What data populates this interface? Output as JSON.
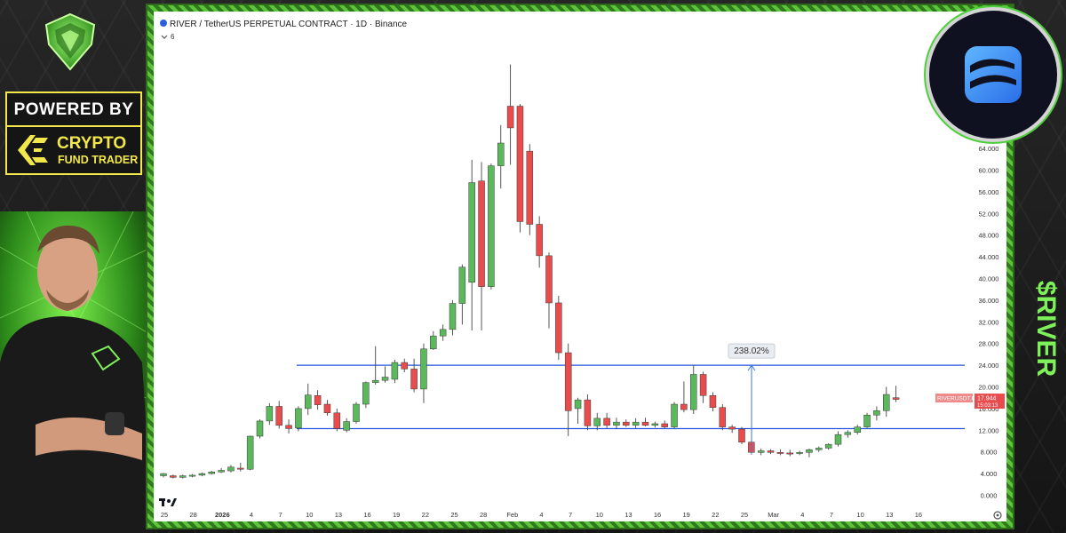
{
  "chart_data": {
    "type": "candlestick",
    "title": "RIVER / TetherUS PERPETUAL CONTRACT · 1D · Binance",
    "indicator_count": "6",
    "x_ticks": [
      "25",
      "28",
      "2026",
      "4",
      "7",
      "10",
      "13",
      "16",
      "19",
      "22",
      "25",
      "28",
      "Feb",
      "4",
      "7",
      "10",
      "13",
      "16",
      "19",
      "22",
      "25",
      "Mar",
      "4",
      "7",
      "10",
      "13",
      "16"
    ],
    "y_ticks": [
      "0.000",
      "4.000",
      "8.000",
      "12.000",
      "16.000",
      "20.000",
      "24.000",
      "28.000",
      "32.000",
      "36.000",
      "40.000",
      "44.000",
      "48.000",
      "52.000",
      "56.000",
      "60.000",
      "64.000"
    ],
    "ylim": [
      0,
      66
    ],
    "candles": [
      {
        "date": "Dec 23",
        "o": 3.6,
        "h": 4.1,
        "l": 3.3,
        "c": 4.0
      },
      {
        "date": "Dec 24",
        "o": 3.6,
        "h": 3.8,
        "l": 3.1,
        "c": 3.3
      },
      {
        "date": "Dec 25",
        "o": 3.3,
        "h": 3.8,
        "l": 3.1,
        "c": 3.6
      },
      {
        "date": "Dec 26",
        "o": 3.6,
        "h": 3.9,
        "l": 3.3,
        "c": 3.7
      },
      {
        "date": "Dec 27",
        "o": 3.7,
        "h": 4.2,
        "l": 3.5,
        "c": 4.0
      },
      {
        "date": "Dec 28",
        "o": 4.0,
        "h": 4.5,
        "l": 3.8,
        "c": 4.3
      },
      {
        "date": "Dec 29",
        "o": 4.3,
        "h": 5.0,
        "l": 4.1,
        "c": 4.6
      },
      {
        "date": "Dec 30",
        "o": 4.5,
        "h": 5.6,
        "l": 4.2,
        "c": 5.2
      },
      {
        "date": "Dec 31",
        "o": 5.0,
        "h": 6.0,
        "l": 4.4,
        "c": 4.8
      },
      {
        "date": "Jan 1",
        "o": 4.8,
        "h": 11.0,
        "l": 4.6,
        "c": 10.9
      },
      {
        "date": "Jan 2",
        "o": 10.9,
        "h": 14.0,
        "l": 10.5,
        "c": 13.7
      },
      {
        "date": "Jan 3",
        "o": 13.7,
        "h": 17.0,
        "l": 13.0,
        "c": 16.4
      },
      {
        "date": "Jan 4",
        "o": 16.4,
        "h": 17.4,
        "l": 12.3,
        "c": 12.9
      },
      {
        "date": "Jan 5",
        "o": 12.9,
        "h": 14.0,
        "l": 11.4,
        "c": 12.3
      },
      {
        "date": "Jan 6",
        "o": 12.4,
        "h": 16.4,
        "l": 11.8,
        "c": 16.0
      },
      {
        "date": "Jan 7",
        "o": 16.0,
        "h": 20.6,
        "l": 14.8,
        "c": 18.5
      },
      {
        "date": "Jan 8",
        "o": 18.4,
        "h": 19.4,
        "l": 15.8,
        "c": 16.7
      },
      {
        "date": "Jan 9",
        "o": 16.8,
        "h": 17.6,
        "l": 14.7,
        "c": 15.2
      },
      {
        "date": "Jan 10",
        "o": 15.2,
        "h": 16.0,
        "l": 11.8,
        "c": 12.3
      },
      {
        "date": "Jan 11",
        "o": 12.0,
        "h": 14.2,
        "l": 11.6,
        "c": 13.6
      },
      {
        "date": "Jan 12",
        "o": 13.6,
        "h": 17.2,
        "l": 13.2,
        "c": 16.8
      },
      {
        "date": "Jan 13",
        "o": 16.8,
        "h": 21.0,
        "l": 16.1,
        "c": 20.8
      },
      {
        "date": "Jan 14",
        "o": 20.8,
        "h": 27.5,
        "l": 20.4,
        "c": 21.2
      },
      {
        "date": "Jan 15",
        "o": 21.2,
        "h": 23.8,
        "l": 20.8,
        "c": 21.8
      },
      {
        "date": "Jan 16",
        "o": 21.4,
        "h": 25.0,
        "l": 20.7,
        "c": 24.5
      },
      {
        "date": "Jan 17",
        "o": 24.5,
        "h": 25.2,
        "l": 22.7,
        "c": 23.3
      },
      {
        "date": "Jan 18",
        "o": 23.3,
        "h": 25.2,
        "l": 19.0,
        "c": 19.6
      },
      {
        "date": "Jan 19",
        "o": 19.6,
        "h": 28.0,
        "l": 17.0,
        "c": 27.0
      },
      {
        "date": "Jan 20",
        "o": 27.0,
        "h": 30.3,
        "l": 26.8,
        "c": 29.4
      },
      {
        "date": "Jan 21",
        "o": 29.4,
        "h": 31.5,
        "l": 28.5,
        "c": 30.6
      },
      {
        "date": "Jan 22",
        "o": 30.6,
        "h": 36.0,
        "l": 29.5,
        "c": 35.4
      },
      {
        "date": "Jan 23",
        "o": 35.4,
        "h": 42.6,
        "l": 31.5,
        "c": 42.1
      },
      {
        "date": "Jan 24",
        "o": 39.3,
        "h": 61.9,
        "l": 30.4,
        "c": 57.7
      },
      {
        "date": "Jan 25",
        "o": 58.0,
        "h": 61.5,
        "l": 30.4,
        "c": 38.5
      },
      {
        "date": "Jan 26",
        "o": 38.5,
        "h": 61.2,
        "l": 38.0,
        "c": 60.8
      },
      {
        "date": "Jan 27",
        "o": 60.8,
        "h": 68.3,
        "l": 56.6,
        "c": 65.0
      },
      {
        "date": "Jan 28",
        "o": 71.8,
        "h": 79.5,
        "l": 61.0,
        "c": 67.8
      },
      {
        "date": "Jan 29",
        "o": 71.8,
        "h": 72.2,
        "l": 48.5,
        "c": 50.5
      },
      {
        "date": "Jan 30",
        "o": 63.5,
        "h": 64.8,
        "l": 48.0,
        "c": 50.0
      },
      {
        "date": "Jan 31",
        "o": 50.0,
        "h": 51.5,
        "l": 42.0,
        "c": 44.2
      },
      {
        "date": "Feb 1",
        "o": 44.2,
        "h": 44.8,
        "l": 30.8,
        "c": 35.5
      },
      {
        "date": "Feb 2",
        "o": 35.5,
        "h": 36.8,
        "l": 25.0,
        "c": 26.3
      },
      {
        "date": "Feb 3",
        "o": 26.3,
        "h": 28.0,
        "l": 10.9,
        "c": 15.6
      },
      {
        "date": "Feb 4",
        "o": 16.0,
        "h": 18.0,
        "l": 13.2,
        "c": 17.6
      },
      {
        "date": "Feb 5",
        "o": 17.6,
        "h": 18.6,
        "l": 12.0,
        "c": 12.8
      },
      {
        "date": "Feb 6",
        "o": 12.8,
        "h": 15.2,
        "l": 12.0,
        "c": 14.2
      },
      {
        "date": "Feb 7",
        "o": 14.2,
        "h": 15.2,
        "l": 12.4,
        "c": 12.9
      },
      {
        "date": "Feb 8",
        "o": 12.9,
        "h": 14.3,
        "l": 12.2,
        "c": 13.5
      },
      {
        "date": "Feb 9",
        "o": 13.5,
        "h": 14.0,
        "l": 12.6,
        "c": 12.9
      },
      {
        "date": "Feb 10",
        "o": 12.9,
        "h": 14.2,
        "l": 12.4,
        "c": 13.5
      },
      {
        "date": "Feb 11",
        "o": 13.5,
        "h": 14.3,
        "l": 12.7,
        "c": 12.9
      },
      {
        "date": "Feb 12",
        "o": 12.9,
        "h": 13.6,
        "l": 12.5,
        "c": 13.2
      },
      {
        "date": "Feb 13",
        "o": 13.2,
        "h": 13.8,
        "l": 12.3,
        "c": 12.6
      },
      {
        "date": "Feb 14",
        "o": 12.6,
        "h": 17.2,
        "l": 12.3,
        "c": 16.8
      },
      {
        "date": "Feb 15",
        "o": 16.8,
        "h": 21.0,
        "l": 15.3,
        "c": 15.8
      },
      {
        "date": "Feb 16",
        "o": 15.8,
        "h": 24.1,
        "l": 15.0,
        "c": 22.3
      },
      {
        "date": "Feb 17",
        "o": 22.3,
        "h": 22.8,
        "l": 17.0,
        "c": 18.4
      },
      {
        "date": "Feb 18",
        "o": 18.4,
        "h": 19.0,
        "l": 15.5,
        "c": 16.2
      },
      {
        "date": "Feb 19",
        "o": 16.2,
        "h": 16.8,
        "l": 12.0,
        "c": 12.6
      },
      {
        "date": "Feb 20",
        "o": 12.6,
        "h": 13.0,
        "l": 11.5,
        "c": 12.2
      },
      {
        "date": "Feb 21",
        "o": 12.2,
        "h": 12.6,
        "l": 9.4,
        "c": 9.8
      },
      {
        "date": "Feb 22",
        "o": 9.8,
        "h": 10.1,
        "l": 7.5,
        "c": 7.9
      },
      {
        "date": "Feb 23",
        "o": 7.9,
        "h": 8.6,
        "l": 7.4,
        "c": 8.2
      },
      {
        "date": "Feb 24",
        "o": 8.2,
        "h": 8.5,
        "l": 7.6,
        "c": 7.9
      },
      {
        "date": "Feb 25",
        "o": 7.9,
        "h": 8.5,
        "l": 7.4,
        "c": 7.8
      },
      {
        "date": "Feb 26",
        "o": 7.8,
        "h": 8.4,
        "l": 7.2,
        "c": 7.7
      },
      {
        "date": "Feb 27",
        "o": 7.7,
        "h": 8.2,
        "l": 7.4,
        "c": 7.9
      },
      {
        "date": "Feb 28",
        "o": 7.9,
        "h": 8.6,
        "l": 7.0,
        "c": 8.4
      },
      {
        "date": "Mar 1",
        "o": 8.4,
        "h": 9.0,
        "l": 8.0,
        "c": 8.7
      },
      {
        "date": "Mar 2",
        "o": 8.7,
        "h": 9.6,
        "l": 8.4,
        "c": 9.4
      },
      {
        "date": "Mar 3",
        "o": 9.4,
        "h": 11.8,
        "l": 9.0,
        "c": 11.2
      },
      {
        "date": "Mar 4",
        "o": 11.2,
        "h": 12.0,
        "l": 10.6,
        "c": 11.6
      },
      {
        "date": "Mar 5",
        "o": 11.6,
        "h": 13.0,
        "l": 11.2,
        "c": 12.6
      },
      {
        "date": "Mar 6",
        "o": 12.6,
        "h": 15.2,
        "l": 12.4,
        "c": 14.8
      },
      {
        "date": "Mar 7",
        "o": 14.8,
        "h": 16.4,
        "l": 13.8,
        "c": 15.6
      },
      {
        "date": "Mar 8",
        "o": 15.6,
        "h": 20.0,
        "l": 14.5,
        "c": 18.6
      },
      {
        "date": "Mar 9",
        "o": 18.0,
        "h": 20.2,
        "l": 17.2,
        "c": 17.7
      }
    ],
    "support_level": 12.3,
    "resistance_level": 24.0,
    "measure_label": "238.02%",
    "current_price_label": "RIVERUSDT.P",
    "current_price": "17.944",
    "price_countdown": "15:03:13",
    "colors": {
      "up": "#5cb85c",
      "down": "#e84c4c",
      "level_line": "#2456e0",
      "measure": "#3b7bd8",
      "price_label_bg": "#f08a8a",
      "axis_text": "#333333",
      "grid": "#f2f2f2"
    },
    "grid": false,
    "legend": "none"
  },
  "brand": {
    "powered_label": "POWERED BY",
    "company_line1": "CRYPTO",
    "company_line2": "FUND TRADER",
    "accent_color": "#f2e74b",
    "frame_color": "#6fd64a"
  },
  "token": {
    "ticker": "$RIVER",
    "ticker_color": "#7ef05a",
    "logo_icon": "river-logo-icon",
    "logo_color": "#3a8cf5"
  },
  "icons": {
    "tradingview_logo": "tradingview-logo-icon",
    "settings": "settings-icon",
    "top_logo": "diamond-crest-icon",
    "person": "presenter-photo"
  }
}
